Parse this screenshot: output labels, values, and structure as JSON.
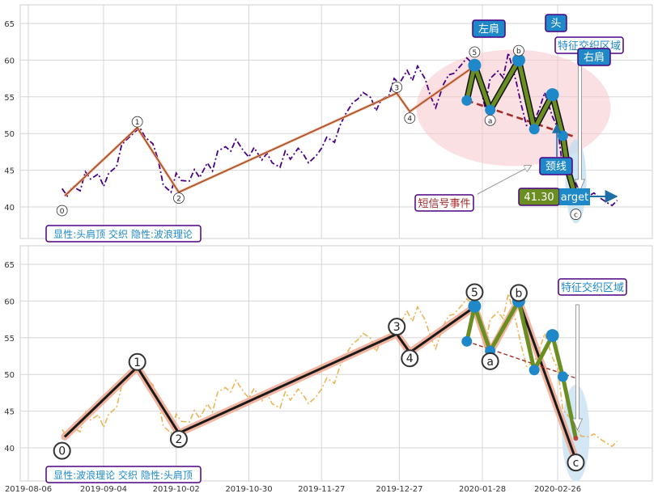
{
  "chart_data": [
    {
      "type": "line",
      "panel": "top",
      "ylim": [
        35.5,
        68.5
      ],
      "yticks": [
        40,
        45,
        50,
        55,
        60,
        65
      ],
      "grid": true,
      "colors": {
        "price": "#4B0082",
        "wave_outline": "#E8966E",
        "wave_core": "#333333",
        "hs_path": "#6B8E23",
        "hs_point": "#1E88C8",
        "neckline": "#A52A2A",
        "zone_fill": "#F5C6CB",
        "label_box": "#1E88C8",
        "label_border": "#4B0082"
      },
      "series": [
        {
          "name": "",
          "style": "dashdot",
          "x": [
            "2019-08-19",
            "2019-08-21",
            "2019-08-23",
            "2019-08-26",
            "2019-08-28",
            "2019-08-30",
            "2019-09-02",
            "2019-09-04",
            "2019-09-06",
            "2019-09-09",
            "2019-09-11",
            "2019-09-13",
            "2019-09-16",
            "2019-09-18",
            "2019-09-20",
            "2019-09-23",
            "2019-09-25",
            "2019-09-27",
            "2019-09-30",
            "2019-10-02",
            "2019-10-04",
            "2019-10-07",
            "2019-10-09",
            "2019-10-11",
            "2019-10-14",
            "2019-10-16",
            "2019-10-18",
            "2019-10-21",
            "2019-10-23",
            "2019-10-25",
            "2019-10-28",
            "2019-10-30",
            "2019-11-01",
            "2019-11-04",
            "2019-11-06",
            "2019-11-08",
            "2019-11-11",
            "2019-11-13",
            "2019-11-15",
            "2019-11-18",
            "2019-11-20",
            "2019-11-22",
            "2019-11-25",
            "2019-11-27",
            "2019-11-29",
            "2019-12-02",
            "2019-12-04",
            "2019-12-06",
            "2019-12-09",
            "2019-12-11",
            "2019-12-13",
            "2019-12-16",
            "2019-12-18",
            "2019-12-20",
            "2019-12-23",
            "2019-12-25",
            "2019-12-27",
            "2019-12-30",
            "2020-01-01",
            "2020-01-03",
            "2020-01-06",
            "2020-01-08",
            "2020-01-10",
            "2020-01-13",
            "2020-01-15",
            "2020-01-17",
            "2020-01-20",
            "2020-01-22",
            "2020-01-24",
            "2020-01-27",
            "2020-01-29",
            "2020-01-31",
            "2020-02-03",
            "2020-02-05",
            "2020-02-07",
            "2020-02-10",
            "2020-02-12",
            "2020-02-14",
            "2020-02-17",
            "2020-02-19",
            "2020-02-21",
            "2020-02-24",
            "2020-02-26",
            "2020-02-28",
            "2020-03-02",
            "2020-03-04",
            "2020-03-06",
            "2020-03-09",
            "2020-03-11",
            "2020-03-13",
            "2020-03-16",
            "2020-03-18",
            "2020-03-20"
          ],
          "y": [
            42.5,
            41.5,
            42.8,
            42.2,
            44.8,
            43.8,
            44.5,
            42.8,
            44.6,
            45.5,
            48.5,
            49.2,
            50.2,
            50.8,
            49.5,
            48.6,
            46.5,
            43.0,
            42.0,
            44.6,
            43.6,
            43.5,
            45.1,
            44.0,
            46.0,
            44.9,
            47.6,
            48.2,
            47.6,
            49.2,
            47.6,
            46.8,
            48.1,
            46.4,
            47.3,
            46.0,
            45.4,
            47.6,
            46.5,
            48.0,
            47.2,
            46.0,
            47.0,
            48.0,
            49.5,
            48.8,
            51.0,
            52.5,
            54.2,
            54.7,
            55.6,
            54.9,
            53.1,
            54.6,
            55.2,
            57.5,
            56.8,
            58.6,
            57.2,
            59.2,
            57.4,
            55.1,
            53.5,
            56.7,
            58.0,
            58.2,
            59.4,
            60.3,
            59.6,
            56.8,
            53.6,
            57.5,
            58.5,
            57.6,
            61.0,
            57.1,
            53.9,
            51.1,
            51.7,
            53.4,
            55.6,
            52.3,
            50.8,
            45.2,
            44.0,
            43.2,
            41.6,
            41.5,
            41.9,
            41.3,
            40.6,
            40.2,
            40.9
          ]
        },
        {
          "name": "",
          "style": "wave",
          "x": [
            "2019-08-20",
            "2019-09-17",
            "2019-10-03",
            "2019-12-26",
            "2019-12-31",
            "2020-01-25"
          ],
          "y": [
            41.5,
            50.8,
            42.0,
            55.5,
            53.0,
            59.2
          ]
        },
        {
          "name": "",
          "style": "head-shoulders",
          "x": [
            "2020-01-22",
            "2020-01-25",
            "2020-01-31",
            "2020-02-11",
            "2020-02-17",
            "2020-02-24",
            "2020-02-28",
            "2020-03-01",
            "2020-03-04"
          ],
          "y": [
            54.5,
            59.3,
            53.2,
            60.0,
            50.6,
            55.3,
            49.7,
            45.0,
            41.3
          ]
        },
        {
          "name": "",
          "style": "neckline",
          "x": [
            "2020-01-22",
            "2020-03-04"
          ],
          "y": [
            54.5,
            49.5
          ]
        }
      ],
      "wave_labels": [
        {
          "label": "0",
          "x": "2019-08-19",
          "y": 39.5
        },
        {
          "label": "1",
          "x": "2019-09-17",
          "y": 51.6
        },
        {
          "label": "2",
          "x": "2019-10-03",
          "y": 41.2
        },
        {
          "label": "3",
          "x": "2019-12-26",
          "y": 56.3
        },
        {
          "label": "4",
          "x": "2019-12-31",
          "y": 52.1
        },
        {
          "label": "5",
          "x": "2020-01-25",
          "y": 61.1
        },
        {
          "label": "a",
          "x": "2020-01-31",
          "y": 51.8
        },
        {
          "label": "b",
          "x": "2020-02-11",
          "y": 61.3
        },
        {
          "label": "c",
          "x": "2020-03-04",
          "y": 39.0
        }
      ],
      "annotations": {
        "left_shoulder": "左肩",
        "head": "头",
        "right_shoulder": "右肩",
        "zone": "特征交织区域",
        "neckline": "颈线",
        "short_signal": "短信号事件",
        "price_value": "41.30",
        "target": "arget",
        "info": "显性:头肩顶 交织 隐性:波浪理论"
      }
    },
    {
      "type": "line",
      "panel": "bottom",
      "ylim": [
        35.5,
        68.5
      ],
      "yticks": [
        40,
        45,
        50,
        55,
        60,
        65
      ],
      "grid": true,
      "colors": {
        "price": "#E8A838",
        "wave_outline": "#F0A890",
        "wave_core": "#1A1A1A",
        "hs_path": "#6B8E23",
        "hs_point": "#1E88C8",
        "neckline": "#A52A2A",
        "zone_fill": "#CFE4F3"
      },
      "series": [
        {
          "name": "",
          "style": "dashdot-light"
        },
        {
          "name": "",
          "style": "wave",
          "x": [
            "2019-08-20",
            "2019-09-17",
            "2019-10-03",
            "2019-12-26",
            "2019-12-31",
            "2020-01-25",
            "2020-01-31",
            "2020-02-11",
            "2020-03-04"
          ],
          "y": [
            41.5,
            51.0,
            42.0,
            55.5,
            53.0,
            59.2,
            53.0,
            60.1,
            38.4
          ]
        },
        {
          "name": "",
          "style": "head-shoulders",
          "x": [
            "2020-01-22",
            "2020-01-25",
            "2020-01-31",
            "2020-02-11",
            "2020-02-17",
            "2020-02-24",
            "2020-02-28",
            "2020-03-04"
          ],
          "y": [
            54.5,
            59.3,
            53.2,
            60.0,
            50.6,
            55.3,
            49.7,
            41.3
          ]
        },
        {
          "name": "",
          "style": "neckline",
          "x": [
            "2020-01-22",
            "2020-03-04"
          ],
          "y": [
            54.5,
            49.5
          ]
        }
      ],
      "wave_labels": [
        {
          "label": "0",
          "x": "2019-08-19",
          "y": 39.6
        },
        {
          "label": "1",
          "x": "2019-09-17",
          "y": 51.7
        },
        {
          "label": "2",
          "x": "2019-10-03",
          "y": 41.2
        },
        {
          "label": "3",
          "x": "2019-12-26",
          "y": 56.5
        },
        {
          "label": "4",
          "x": "2019-12-31",
          "y": 52.2
        },
        {
          "label": "5",
          "x": "2020-01-25",
          "y": 61.2
        },
        {
          "label": "a",
          "x": "2020-01-31",
          "y": 51.8
        },
        {
          "label": "b",
          "x": "2020-02-11",
          "y": 61.1
        },
        {
          "label": "c",
          "x": "2020-03-04",
          "y": 38.0
        }
      ],
      "annotations": {
        "zone": "特征交织区域",
        "info": "显性:波浪理论 交织 隐性:头肩顶"
      }
    }
  ],
  "xaxis": {
    "range": [
      "2019-08-06",
      "2020-03-24"
    ],
    "ticks": [
      "2019-08-06",
      "2019-09-04",
      "2019-10-02",
      "2019-10-30",
      "2019-11-27",
      "2019-12-27",
      "2020-01-28",
      "2020-02-26"
    ]
  }
}
